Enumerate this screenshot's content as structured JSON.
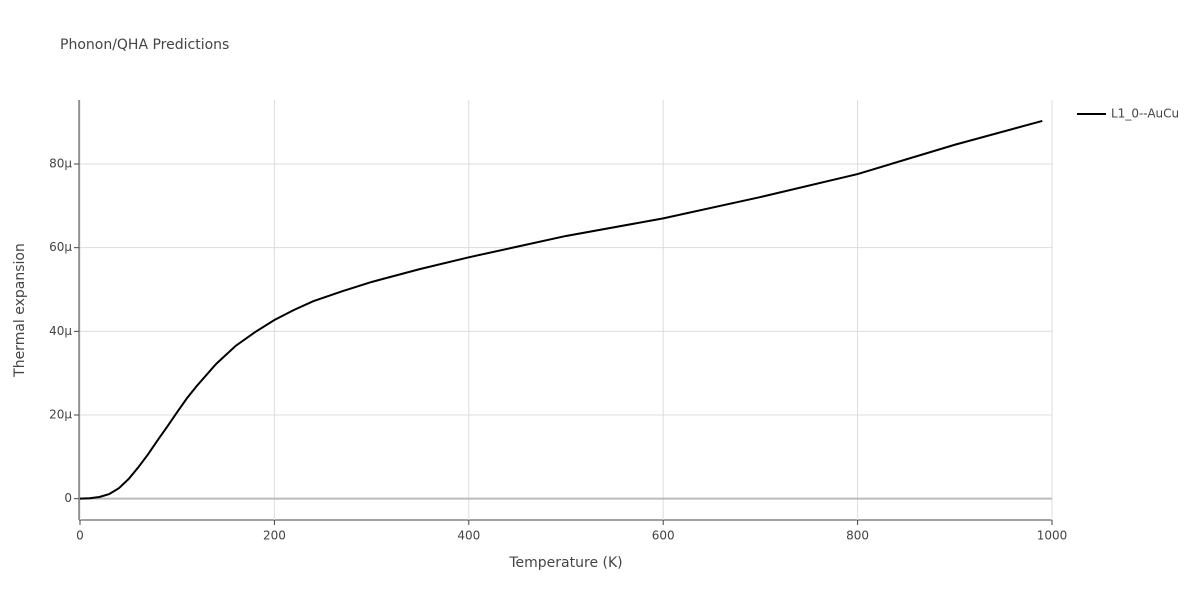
{
  "chart_data": {
    "type": "line",
    "title": "Phonon/QHA Predictions",
    "x_label": "Temperature (K)",
    "y_label": "Thermal expansion",
    "x": [
      0,
      10,
      20,
      30,
      40,
      50,
      60,
      70,
      80,
      90,
      100,
      110,
      120,
      140,
      160,
      180,
      200,
      220,
      240,
      270,
      300,
      350,
      400,
      500,
      600,
      700,
      800,
      900,
      990
    ],
    "series": [
      {
        "name": "L1_0--AuCu",
        "color": "#000000",
        "values": [
          0,
          1e-07,
          4e-07,
          1.1e-06,
          2.5e-06,
          4.7e-06,
          7.5e-06,
          1.06e-05,
          1.4e-05,
          1.73e-05,
          2.07e-05,
          2.4e-05,
          2.69e-05,
          3.22e-05,
          3.65e-05,
          3.98e-05,
          4.27e-05,
          4.51e-05,
          4.72e-05,
          4.96e-05,
          5.18e-05,
          5.49e-05,
          5.77e-05,
          6.28e-05,
          6.7e-05,
          7.21e-05,
          7.76e-05,
          8.46e-05,
          9.03e-05
        ]
      }
    ],
    "xlim": [
      0,
      1000
    ],
    "xticks": [
      0,
      200,
      400,
      600,
      800,
      1000
    ],
    "ylim": [
      -5.1e-06,
      9.53e-05
    ],
    "yticks": [
      0,
      {
        "value": 2e-05,
        "label": "20μ"
      },
      {
        "value": 4e-05,
        "label": "40μ"
      },
      {
        "value": 6e-05,
        "label": "60μ"
      },
      {
        "value": 8e-05,
        "label": "80μ"
      }
    ],
    "grid": true,
    "legend": "top-right"
  }
}
